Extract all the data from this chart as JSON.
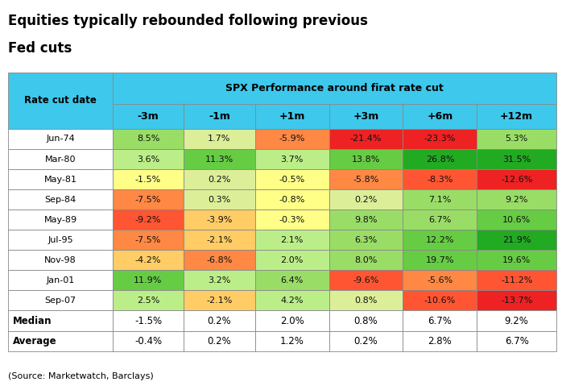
{
  "title_line1": "Equities typically rebounded following previous",
  "title_line2": "Fed cuts",
  "source": "(Source: Marketwatch, Barclays)",
  "header_row1": "SPX Performance around firat rate cut",
  "col_header": "Rate cut date",
  "columns": [
    "-3m",
    "-1m",
    "+1m",
    "+3m",
    "+6m",
    "+12m"
  ],
  "rows": [
    {
      "label": "Jun-74",
      "values": [
        "8.5%",
        "1.7%",
        "-5.9%",
        "-21.4%",
        "-23.3%",
        "5.3%"
      ],
      "nums": [
        8.5,
        1.7,
        -5.9,
        -21.4,
        -23.3,
        5.3
      ]
    },
    {
      "label": "Mar-80",
      "values": [
        "3.6%",
        "11.3%",
        "3.7%",
        "13.8%",
        "26.8%",
        "31.5%"
      ],
      "nums": [
        3.6,
        11.3,
        3.7,
        13.8,
        26.8,
        31.5
      ]
    },
    {
      "label": "May-81",
      "values": [
        "-1.5%",
        "0.2%",
        "-0.5%",
        "-5.8%",
        "-8.3%",
        "-12.6%"
      ],
      "nums": [
        -1.5,
        0.2,
        -0.5,
        -5.8,
        -8.3,
        -12.6
      ]
    },
    {
      "label": "Sep-84",
      "values": [
        "-7.5%",
        "0.3%",
        "-0.8%",
        "0.2%",
        "7.1%",
        "9.2%"
      ],
      "nums": [
        -7.5,
        0.3,
        -0.8,
        0.2,
        7.1,
        9.2
      ]
    },
    {
      "label": "May-89",
      "values": [
        "-9.2%",
        "-3.9%",
        "-0.3%",
        "9.8%",
        "6.7%",
        "10.6%"
      ],
      "nums": [
        -9.2,
        -3.9,
        -0.3,
        9.8,
        6.7,
        10.6
      ]
    },
    {
      "label": "Jul-95",
      "values": [
        "-7.5%",
        "-2.1%",
        "2.1%",
        "6.3%",
        "12.2%",
        "21.9%"
      ],
      "nums": [
        -7.5,
        -2.1,
        2.1,
        6.3,
        12.2,
        21.9
      ]
    },
    {
      "label": "Nov-98",
      "values": [
        "-4.2%",
        "-6.8%",
        "2.0%",
        "8.0%",
        "19.7%",
        "19.6%"
      ],
      "nums": [
        -4.2,
        -6.8,
        2.0,
        8.0,
        19.7,
        19.6
      ]
    },
    {
      "label": "Jan-01",
      "values": [
        "11.9%",
        "3.2%",
        "6.4%",
        "-9.6%",
        "-5.6%",
        "-11.2%"
      ],
      "nums": [
        11.9,
        3.2,
        6.4,
        -9.6,
        -5.6,
        -11.2
      ]
    },
    {
      "label": "Sep-07",
      "values": [
        "2.5%",
        "-2.1%",
        "4.2%",
        "0.8%",
        "-10.6%",
        "-13.7%"
      ],
      "nums": [
        2.5,
        -2.1,
        4.2,
        0.8,
        -10.6,
        -13.7
      ]
    }
  ],
  "median": [
    "-1.5%",
    "0.2%",
    "2.0%",
    "0.8%",
    "6.7%",
    "9.2%"
  ],
  "average": [
    "-0.4%",
    "0.2%",
    "1.2%",
    "0.2%",
    "2.8%",
    "6.7%"
  ],
  "header_bg": "#3EC8EC",
  "table_bg": "#FFFFFF",
  "border_color": "#888888",
  "title_fontsize": 12,
  "cell_fontsize": 8.5
}
